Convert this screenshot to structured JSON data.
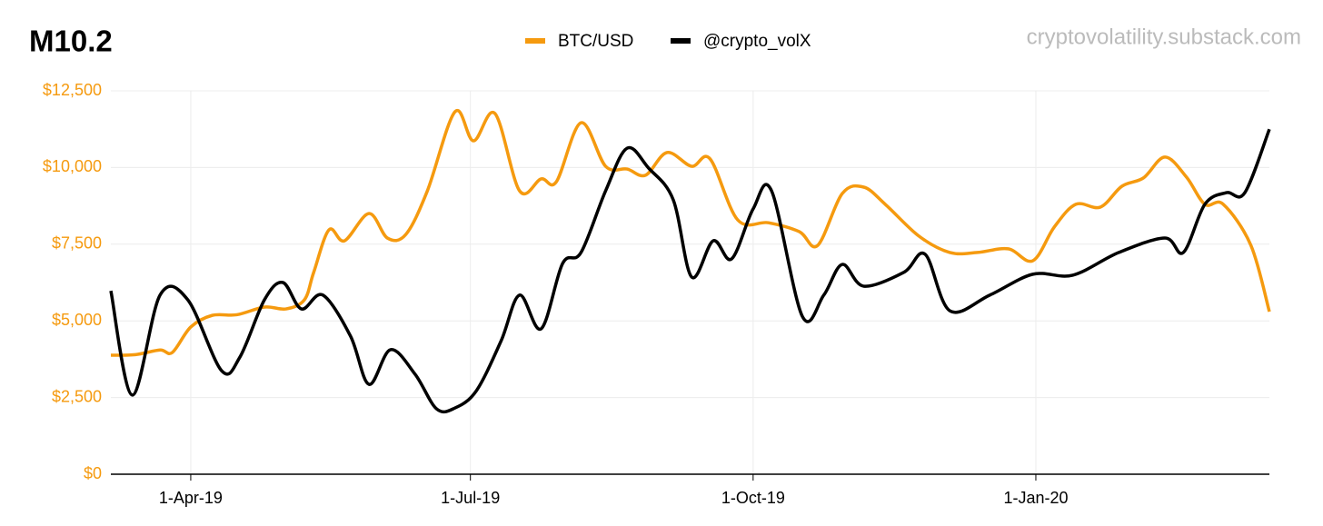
{
  "chart_data": {
    "type": "line",
    "title": "M10.2",
    "source": "cryptovolatility.substack.com",
    "xlim": [
      "2019-03-06",
      "2020-03-17"
    ],
    "xticks": [
      {
        "value": "2019-04-01",
        "label": "1-Apr-19"
      },
      {
        "value": "2019-07-01",
        "label": "1-Jul-19"
      },
      {
        "value": "2019-10-01",
        "label": "1-Oct-19"
      },
      {
        "value": "2020-01-01",
        "label": "1-Jan-20"
      }
    ],
    "ylim": [
      0,
      12500
    ],
    "yticks": [
      {
        "value": 0,
        "label": "$0"
      },
      {
        "value": 2500,
        "label": "$2,500"
      },
      {
        "value": 5000,
        "label": "$5,000"
      },
      {
        "value": 7500,
        "label": "$7,500"
      },
      {
        "value": 10000,
        "label": "$10,000"
      },
      {
        "value": 12500,
        "label": "$12,500"
      }
    ],
    "grid": true,
    "legend": "top",
    "series": [
      {
        "name": "BTC/USD",
        "color": "#f59a0f",
        "x": [
          "2019-03-06",
          "2019-03-14",
          "2019-03-22",
          "2019-03-26",
          "2019-04-01",
          "2019-04-08",
          "2019-04-16",
          "2019-04-25",
          "2019-05-02",
          "2019-05-08",
          "2019-05-11",
          "2019-05-16",
          "2019-05-21",
          "2019-05-29",
          "2019-06-04",
          "2019-06-10",
          "2019-06-17",
          "2019-06-26",
          "2019-07-02",
          "2019-07-09",
          "2019-07-17",
          "2019-07-24",
          "2019-07-29",
          "2019-08-06",
          "2019-08-14",
          "2019-08-21",
          "2019-08-27",
          "2019-09-03",
          "2019-09-11",
          "2019-09-17",
          "2019-09-26",
          "2019-10-06",
          "2019-10-16",
          "2019-10-22",
          "2019-10-30",
          "2019-11-06",
          "2019-11-13",
          "2019-11-24",
          "2019-12-04",
          "2019-12-13",
          "2019-12-23",
          "2019-12-31",
          "2020-01-07",
          "2020-01-14",
          "2020-01-22",
          "2020-01-29",
          "2020-02-05",
          "2020-02-12",
          "2020-02-19",
          "2020-02-25",
          "2020-03-02",
          "2020-03-11",
          "2020-03-17"
        ],
        "values": [
          3880,
          3900,
          4050,
          3970,
          4800,
          5180,
          5200,
          5450,
          5390,
          5690,
          6580,
          7970,
          7610,
          8500,
          7700,
          7820,
          9240,
          11820,
          10870,
          11760,
          9240,
          9630,
          9540,
          11460,
          10040,
          9950,
          9750,
          10490,
          10040,
          10280,
          8290,
          8200,
          7910,
          7460,
          9150,
          9360,
          8800,
          7760,
          7230,
          7230,
          7350,
          6960,
          8060,
          8800,
          8710,
          9390,
          9660,
          10340,
          9690,
          8800,
          8800,
          7460,
          5300
        ]
      },
      {
        "name": "@crypto_volX",
        "color": "#000000",
        "x": [
          "2019-03-06",
          "2019-03-13",
          "2019-03-22",
          "2019-03-31",
          "2019-04-11",
          "2019-04-17",
          "2019-04-25",
          "2019-05-01",
          "2019-05-07",
          "2019-05-14",
          "2019-05-23",
          "2019-05-29",
          "2019-06-05",
          "2019-06-13",
          "2019-06-20",
          "2019-06-26",
          "2019-07-03",
          "2019-07-11",
          "2019-07-17",
          "2019-07-24",
          "2019-07-31",
          "2019-08-06",
          "2019-08-14",
          "2019-08-21",
          "2019-08-28",
          "2019-09-05",
          "2019-09-11",
          "2019-09-18",
          "2019-09-24",
          "2019-10-01",
          "2019-10-07",
          "2019-10-17",
          "2019-10-24",
          "2019-10-30",
          "2019-11-06",
          "2019-11-19",
          "2019-11-26",
          "2019-12-04",
          "2019-12-17",
          "2019-12-31",
          "2020-01-13",
          "2020-01-28",
          "2020-02-12",
          "2020-02-18",
          "2020-02-25",
          "2020-03-03",
          "2020-03-09",
          "2020-03-17"
        ],
        "values": [
          5980,
          2580,
          5840,
          5690,
          3380,
          3820,
          5690,
          6250,
          5390,
          5840,
          4500,
          2930,
          4060,
          3260,
          2130,
          2160,
          2730,
          4350,
          5840,
          4740,
          6870,
          7230,
          9240,
          10630,
          9980,
          8950,
          6430,
          7610,
          7020,
          8650,
          9240,
          5150,
          5840,
          6840,
          6130,
          6580,
          7170,
          5330,
          5840,
          6520,
          6490,
          7230,
          7700,
          7230,
          8800,
          9180,
          9180,
          11250
        ]
      }
    ]
  }
}
